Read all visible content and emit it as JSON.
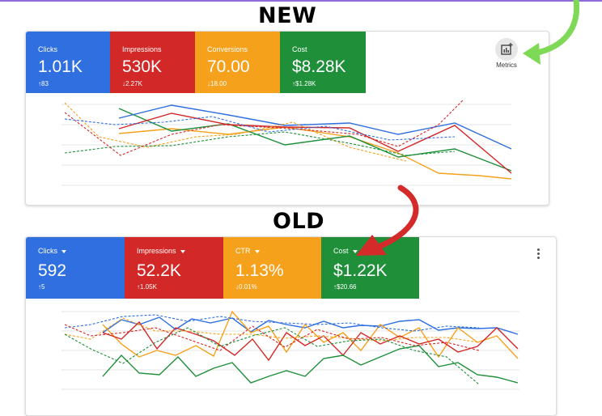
{
  "headings": {
    "new": "NEW",
    "old": "OLD"
  },
  "new_panel": {
    "tiles": [
      {
        "label": "Clicks",
        "value": "1.01K",
        "delta": "↑83",
        "color": "#2f6fe0"
      },
      {
        "label": "Impressions",
        "value": "530K",
        "delta": "↓2.27K",
        "color": "#d32828"
      },
      {
        "label": "Conversions",
        "value": "70.00",
        "delta": "↓18.00",
        "color": "#f5a11c"
      },
      {
        "label": "Cost",
        "value": "$8.28K",
        "delta": "↑$1.28K",
        "color": "#1f8f3a"
      }
    ],
    "metrics_button": {
      "label": "Metrics",
      "icon": "chart-add-icon"
    }
  },
  "old_panel": {
    "tiles": [
      {
        "label": "Clicks",
        "value": "592",
        "delta": "↑5",
        "color": "#2f6fe0"
      },
      {
        "label": "Impressions",
        "value": "52.2K",
        "delta": "↑1.05K",
        "color": "#d32828"
      },
      {
        "label": "CTR",
        "value": "1.13%",
        "delta": "↓0.01%",
        "color": "#f5a11c"
      },
      {
        "label": "Cost",
        "value": "$1.22K",
        "delta": "↑$20.66",
        "color": "#1f8f3a"
      }
    ],
    "menu_icon": "more-vert-icon"
  },
  "arrow_colors": {
    "green": "#7ed957",
    "red": "#d42a2a"
  }
}
